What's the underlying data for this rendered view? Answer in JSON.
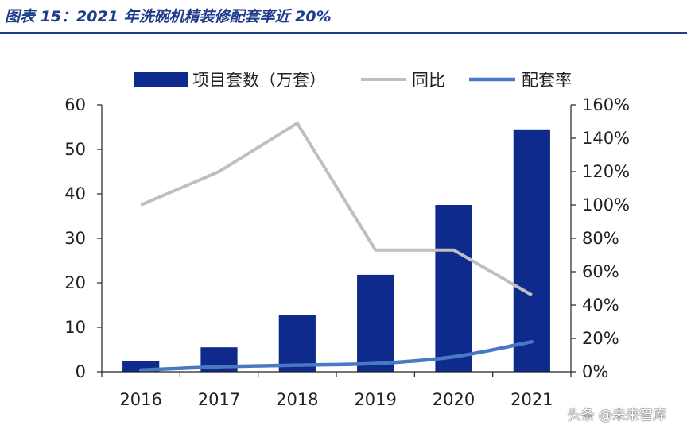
{
  "figure_title": "图表 15：2021 年洗碗机精装修配套率近 20%",
  "watermark": "头条 @未来智库",
  "colors": {
    "bar": "#0e2a8c",
    "yoy": "#bfbfbf",
    "rate": "#4a78c4",
    "title": "#1f3c8c"
  },
  "chart_data": {
    "type": "bar",
    "categories": [
      "2016",
      "2017",
      "2018",
      "2019",
      "2020",
      "2021"
    ],
    "series": [
      {
        "name": "项目套数（万套）",
        "type": "bar",
        "axis": "left",
        "values": [
          2.5,
          5.5,
          12.8,
          21.8,
          37.5,
          54.5
        ]
      },
      {
        "name": "同比",
        "type": "line",
        "axis": "right",
        "values": [
          1.0,
          1.2,
          1.49,
          0.73,
          0.73,
          0.46
        ]
      },
      {
        "name": "配套率",
        "type": "line",
        "axis": "right",
        "values": [
          0.01,
          0.03,
          0.04,
          0.05,
          0.09,
          0.18
        ]
      }
    ],
    "y_left": {
      "min": 0,
      "max": 60,
      "ticks": [
        0,
        10,
        20,
        30,
        40,
        50,
        60
      ],
      "tick_labels": [
        "0",
        "10",
        "20",
        "30",
        "40",
        "50",
        "60"
      ]
    },
    "y_right": {
      "min": 0,
      "max": 1.6,
      "ticks": [
        0,
        0.2,
        0.4,
        0.6,
        0.8,
        1.0,
        1.2,
        1.4,
        1.6
      ],
      "tick_labels": [
        "0%",
        "20%",
        "40%",
        "60%",
        "80%",
        "100%",
        "120%",
        "140%",
        "160%"
      ]
    },
    "legend_position": "top"
  }
}
